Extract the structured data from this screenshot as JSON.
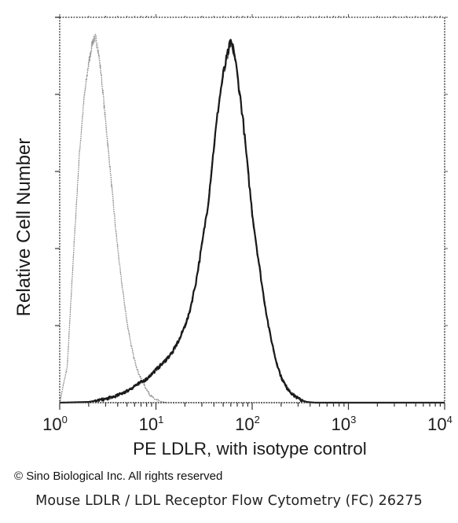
{
  "chart_data": {
    "type": "line",
    "xlabel": "PE  LDLR,  with isotype control",
    "ylabel": "Relative Cell Number",
    "x_scale": "log",
    "xlim": [
      1,
      10000
    ],
    "ylim": [
      0,
      1.05
    ],
    "x_ticks": [
      {
        "value": 1,
        "base": "10",
        "exp": "0"
      },
      {
        "value": 10,
        "base": "10",
        "exp": "1"
      },
      {
        "value": 100,
        "base": "10",
        "exp": "2"
      },
      {
        "value": 1000,
        "base": "10",
        "exp": "3"
      },
      {
        "value": 10000,
        "base": "10",
        "exp": "4"
      }
    ],
    "grid": false,
    "legend": "none",
    "series": [
      {
        "style": "dotted-light",
        "color": "#8c8c8c",
        "x": [
          1.0,
          1.2,
          1.4,
          1.6,
          1.8,
          2.0,
          2.2,
          2.35,
          2.5,
          2.7,
          3.0,
          3.4,
          3.8,
          4.3,
          5.0,
          5.8,
          6.6,
          7.5,
          8.5,
          9.5,
          11,
          13
        ],
        "y": [
          0.0,
          0.1,
          0.42,
          0.68,
          0.84,
          0.93,
          0.99,
          1.0,
          0.97,
          0.9,
          0.77,
          0.62,
          0.48,
          0.35,
          0.22,
          0.13,
          0.08,
          0.05,
          0.025,
          0.01,
          0.004,
          0.0
        ]
      },
      {
        "style": "solid-dark",
        "color": "#1a1a1a",
        "x": [
          1.0,
          2.0,
          3.0,
          4.0,
          5.0,
          6.0,
          8.0,
          10,
          12,
          15,
          18,
          22,
          26,
          30,
          35,
          40,
          45,
          50,
          55,
          60,
          65,
          70,
          80,
          90,
          100,
          115,
          130,
          150,
          175,
          200,
          230,
          270,
          320,
          370,
          450,
          600,
          10000
        ],
        "y": [
          0.0,
          0.002,
          0.01,
          0.02,
          0.032,
          0.045,
          0.065,
          0.09,
          0.11,
          0.14,
          0.18,
          0.24,
          0.33,
          0.43,
          0.55,
          0.7,
          0.82,
          0.9,
          0.95,
          0.99,
          0.96,
          0.9,
          0.78,
          0.64,
          0.52,
          0.4,
          0.3,
          0.2,
          0.12,
          0.07,
          0.04,
          0.02,
          0.007,
          0.002,
          0.0,
          0.0,
          0.0
        ]
      }
    ]
  },
  "copyright": "© Sino Biological Inc. All rights reserved",
  "caption": "Mouse LDLR / LDL Receptor Flow Cytometry (FC) 26275"
}
